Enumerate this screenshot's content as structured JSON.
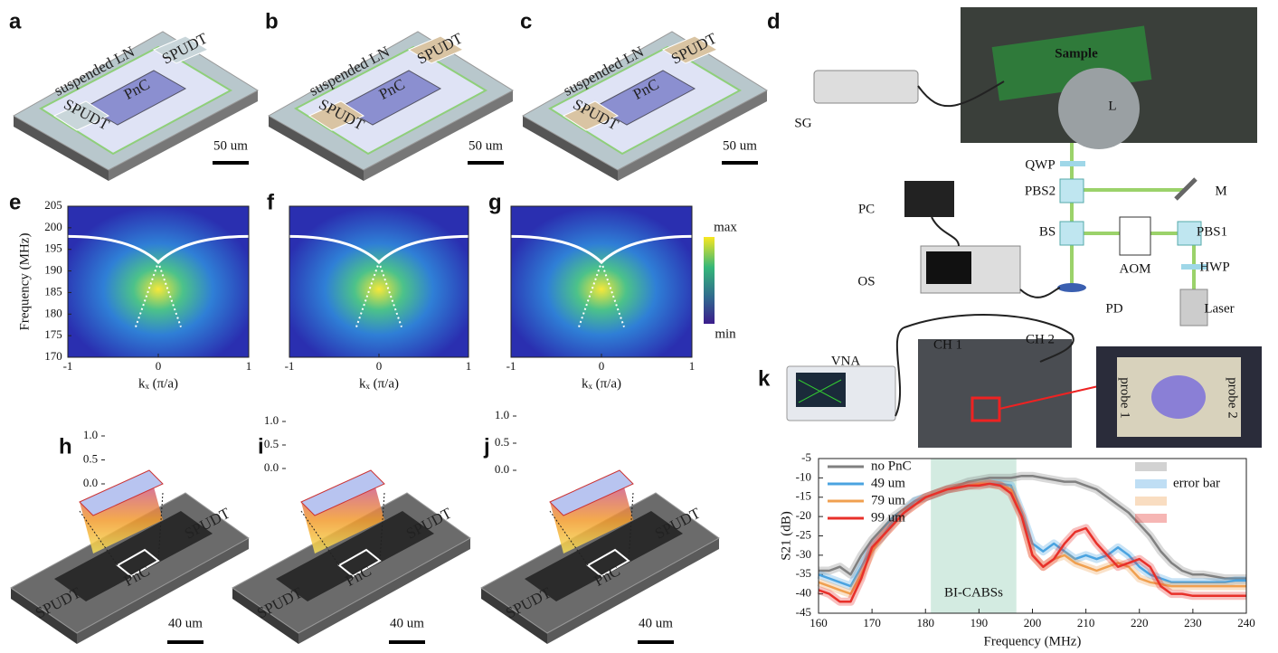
{
  "panels": {
    "a": {
      "label": "a",
      "region": "suspended LN",
      "ports": [
        "SPUDT",
        "SPUDT"
      ],
      "crystal": "PnC",
      "scale": "50 um"
    },
    "b": {
      "label": "b",
      "region": "suspended LN",
      "ports": [
        "SPUDT",
        "SPUDT"
      ],
      "crystal": "PnC",
      "scale": "50 um"
    },
    "c": {
      "label": "c",
      "region": "suspended LN",
      "ports": [
        "SPUDT",
        "SPUDT"
      ],
      "crystal": "PnC",
      "scale": "50 um"
    },
    "d": {
      "label": "d",
      "parts": [
        "SG",
        "Sample",
        "L",
        "QWP",
        "PBS2",
        "M",
        "PC",
        "BS",
        "PBS1",
        "AOM",
        "HWP",
        "OS",
        "PD",
        "Laser"
      ]
    },
    "e": {
      "label": "e"
    },
    "f": {
      "label": "f"
    },
    "g": {
      "label": "g"
    },
    "h": {
      "label": "h",
      "ports": [
        "SPUDT",
        "SPUDT"
      ],
      "crystal": "PnC",
      "scale": "40 um"
    },
    "i": {
      "label": "i",
      "ports": [
        "SPUDT",
        "SPUDT"
      ],
      "crystal": "PnC",
      "scale": "40 um"
    },
    "j": {
      "label": "j",
      "ports": [
        "SPUDT",
        "SPUDT"
      ],
      "crystal": "PnC",
      "scale": "40 um"
    },
    "k": {
      "label": "k",
      "parts": [
        "VNA",
        "CH 1",
        "CH 2",
        "probe 1",
        "probe 2"
      ]
    }
  },
  "dispersion": {
    "ylabel": "Frequency (MHz)",
    "xlabel": "kₓ (π/a)",
    "ylim": [
      170,
      205
    ],
    "yticks": [
      170,
      175,
      180,
      185,
      190,
      195,
      200,
      205
    ],
    "xlim": [
      -1,
      1
    ],
    "xticks": [
      -1,
      0,
      1
    ],
    "colorbar": [
      "max",
      "min"
    ]
  },
  "profile_ticks": [
    {
      "value": 1,
      "label": "1.0"
    },
    {
      "value": 0.5,
      "label": "0.5"
    },
    {
      "value": 0,
      "label": "0.0"
    }
  ],
  "chart_data": {
    "type": "line",
    "xlabel": "Frequency (MHz)",
    "ylabel": "S21 (dB)",
    "x": [
      160,
      162,
      164,
      166,
      168,
      170,
      172,
      174,
      176,
      178,
      180,
      182,
      184,
      186,
      188,
      190,
      192,
      194,
      196,
      198,
      200,
      202,
      204,
      206,
      208,
      210,
      212,
      214,
      216,
      218,
      220,
      222,
      224,
      226,
      228,
      230,
      232,
      234,
      236,
      238,
      240
    ],
    "series": [
      {
        "name": "no PnC",
        "color": "#808080",
        "values": [
          -34,
          -34,
          -33,
          -35,
          -30,
          -26,
          -23,
          -20,
          -18,
          -16,
          -15,
          -14,
          -13,
          -12,
          -11,
          -10.5,
          -10,
          -10,
          -10,
          -9.5,
          -9.5,
          -10,
          -10.5,
          -11,
          -11,
          -12,
          -13,
          -15,
          -17,
          -19,
          -22,
          -25,
          -29,
          -32,
          -34,
          -35,
          -35,
          -35.5,
          -36,
          -36,
          -36
        ]
      },
      {
        "name": "49 um",
        "color": "#4aa3e0",
        "values": [
          -35,
          -36,
          -37,
          -38,
          -33,
          -28,
          -25,
          -21,
          -19,
          -16,
          -15,
          -14,
          -13,
          -12.5,
          -12,
          -11.5,
          -11.5,
          -11.5,
          -12,
          -19,
          -27,
          -29,
          -27,
          -29,
          -31,
          -30,
          -31,
          -30,
          -28,
          -30,
          -33,
          -35,
          -36,
          -37,
          -37,
          -37,
          -37,
          -37,
          -37,
          -36.5,
          -36.5
        ]
      },
      {
        "name": "79 um",
        "color": "#f0a050",
        "values": [
          -37,
          -38,
          -39,
          -40,
          -35,
          -29,
          -25,
          -22,
          -19,
          -17,
          -15,
          -14,
          -13,
          -12.5,
          -12,
          -11.5,
          -11.5,
          -12,
          -13,
          -20,
          -30,
          -33,
          -31,
          -30,
          -32,
          -33,
          -34,
          -33,
          -32,
          -33,
          -36,
          -37,
          -37.5,
          -38,
          -38,
          -38,
          -38,
          -38,
          -38,
          -38,
          -38
        ]
      },
      {
        "name": "99 um",
        "color": "#e8302a",
        "values": [
          -39,
          -40,
          -42,
          -42,
          -36,
          -28,
          -25,
          -22,
          -19,
          -17,
          -15,
          -14,
          -13,
          -12.5,
          -12,
          -12,
          -11.5,
          -12,
          -14,
          -20,
          -30,
          -33,
          -31,
          -27,
          -24,
          -23,
          -27,
          -30,
          -33,
          -32,
          -31,
          -33,
          -38,
          -40,
          -40,
          -40.5,
          -40.5,
          -40.5,
          -40.5,
          -40.5,
          -40.5
        ]
      }
    ],
    "error_bar_label": "error bar",
    "band": {
      "label": "BI-CABSs",
      "range": [
        181,
        197
      ],
      "color": "#d3ebe1"
    },
    "xlim": [
      160,
      240
    ],
    "xticks": [
      160,
      170,
      180,
      190,
      200,
      210,
      220,
      230,
      240
    ],
    "ylim": [
      -45,
      -5
    ],
    "yticks": [
      -45,
      -40,
      -35,
      -30,
      -25,
      -20,
      -15,
      -10,
      -5
    ]
  }
}
